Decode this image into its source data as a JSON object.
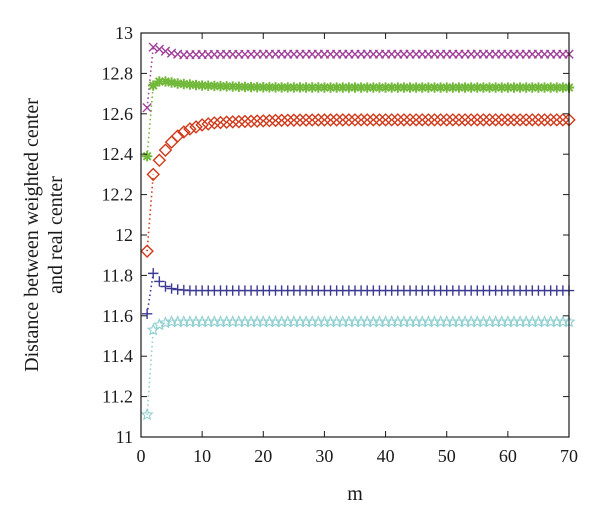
{
  "chart_data": {
    "type": "scatter",
    "title": "",
    "xlabel": "m",
    "ylabel_lines": [
      "Distance between weighted center",
      "and real center"
    ],
    "xlim": [
      0,
      70
    ],
    "ylim": [
      11,
      13
    ],
    "xticks": [
      0,
      10,
      20,
      30,
      40,
      50,
      60,
      70
    ],
    "yticks": [
      11,
      11.2,
      11.4,
      11.6,
      11.8,
      12,
      12.2,
      12.4,
      12.6,
      12.8,
      13
    ],
    "xtick_labels": [
      "0",
      "10",
      "20",
      "30",
      "40",
      "50",
      "60",
      "70"
    ],
    "ytick_labels": [
      "11",
      "11.2",
      "11.4",
      "11.6",
      "11.8",
      "12",
      "12.2",
      "12.4",
      "12.6",
      "12.8",
      "13"
    ],
    "grid": false,
    "legend": "none",
    "x_range": [
      1,
      70
    ],
    "series": [
      {
        "marker": "x",
        "color": "#a0409a",
        "first_points": [
          [
            1,
            12.63
          ],
          [
            2,
            12.93
          ],
          [
            3,
            12.92
          ],
          [
            4,
            12.91
          ],
          [
            5,
            12.9
          ],
          [
            6,
            12.895
          ],
          [
            7,
            12.892
          ]
        ],
        "steady_value": 12.895
      },
      {
        "marker": "asterisk",
        "color": "#72b83a",
        "first_points": [
          [
            1,
            12.39
          ],
          [
            2,
            12.74
          ],
          [
            3,
            12.76
          ],
          [
            4,
            12.76
          ],
          [
            5,
            12.755
          ],
          [
            6,
            12.75
          ],
          [
            8,
            12.745
          ],
          [
            10,
            12.74
          ],
          [
            15,
            12.735
          ]
        ],
        "steady_value": 12.73
      },
      {
        "marker": "diamond",
        "color": "#d03a1a",
        "first_points": [
          [
            1,
            11.92
          ],
          [
            2,
            12.3
          ],
          [
            3,
            12.37
          ],
          [
            4,
            12.42
          ],
          [
            5,
            12.46
          ],
          [
            6,
            12.49
          ],
          [
            7,
            12.51
          ],
          [
            8,
            12.525
          ],
          [
            9,
            12.535
          ],
          [
            10,
            12.545
          ],
          [
            12,
            12.555
          ],
          [
            15,
            12.56
          ],
          [
            20,
            12.565
          ]
        ],
        "steady_value": 12.57
      },
      {
        "marker": "plus",
        "color": "#3c3a92",
        "first_points": [
          [
            1,
            11.61
          ],
          [
            2,
            11.81
          ],
          [
            3,
            11.77
          ],
          [
            4,
            11.745
          ],
          [
            5,
            11.735
          ],
          [
            6,
            11.73
          ],
          [
            8,
            11.725
          ],
          [
            10,
            11.725
          ]
        ],
        "steady_value": 11.725
      },
      {
        "marker": "star",
        "color": "#8fcfd0",
        "first_points": [
          [
            1,
            11.11
          ],
          [
            2,
            11.53
          ],
          [
            3,
            11.555
          ],
          [
            4,
            11.565
          ],
          [
            5,
            11.57
          ],
          [
            6,
            11.57
          ]
        ],
        "steady_value": 11.57
      }
    ]
  }
}
